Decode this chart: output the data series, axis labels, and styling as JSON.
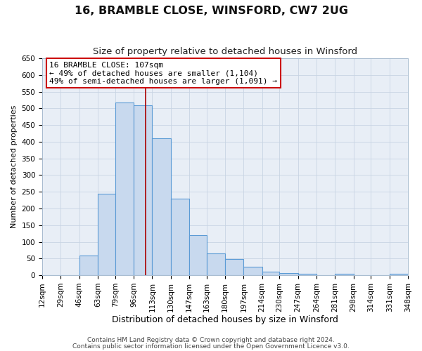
{
  "title": "16, BRAMBLE CLOSE, WINSFORD, CW7 2UG",
  "subtitle": "Size of property relative to detached houses in Winsford",
  "xlabel": "Distribution of detached houses by size in Winsford",
  "ylabel": "Number of detached properties",
  "bin_edges": [
    12,
    29,
    46,
    63,
    79,
    96,
    113,
    130,
    147,
    163,
    180,
    197,
    214,
    230,
    247,
    264,
    281,
    298,
    314,
    331,
    348
  ],
  "bar_heights": [
    0,
    0,
    60,
    245,
    517,
    510,
    410,
    230,
    120,
    65,
    48,
    25,
    10,
    7,
    5,
    0,
    5,
    0,
    0,
    5
  ],
  "bar_color": "#c8d9ee",
  "bar_edge_color": "#5b9bd5",
  "vline_x": 107,
  "vline_color": "#aa0000",
  "annotation_text": "16 BRAMBLE CLOSE: 107sqm\n← 49% of detached houses are smaller (1,104)\n49% of semi-detached houses are larger (1,091) →",
  "annotation_box_edge": "#cc0000",
  "annotation_box_bg": "#ffffff",
  "ylim": [
    0,
    650
  ],
  "yticks": [
    0,
    50,
    100,
    150,
    200,
    250,
    300,
    350,
    400,
    450,
    500,
    550,
    600,
    650
  ],
  "grid_color": "#c8d4e3",
  "bg_color": "#e8eef6",
  "footer_line1": "Contains HM Land Registry data © Crown copyright and database right 2024.",
  "footer_line2": "Contains public sector information licensed under the Open Government Licence v3.0.",
  "title_fontsize": 11.5,
  "subtitle_fontsize": 9.5,
  "xlabel_fontsize": 9,
  "ylabel_fontsize": 8,
  "tick_fontsize": 7.5,
  "footer_fontsize": 6.5,
  "annotation_fontsize": 8
}
